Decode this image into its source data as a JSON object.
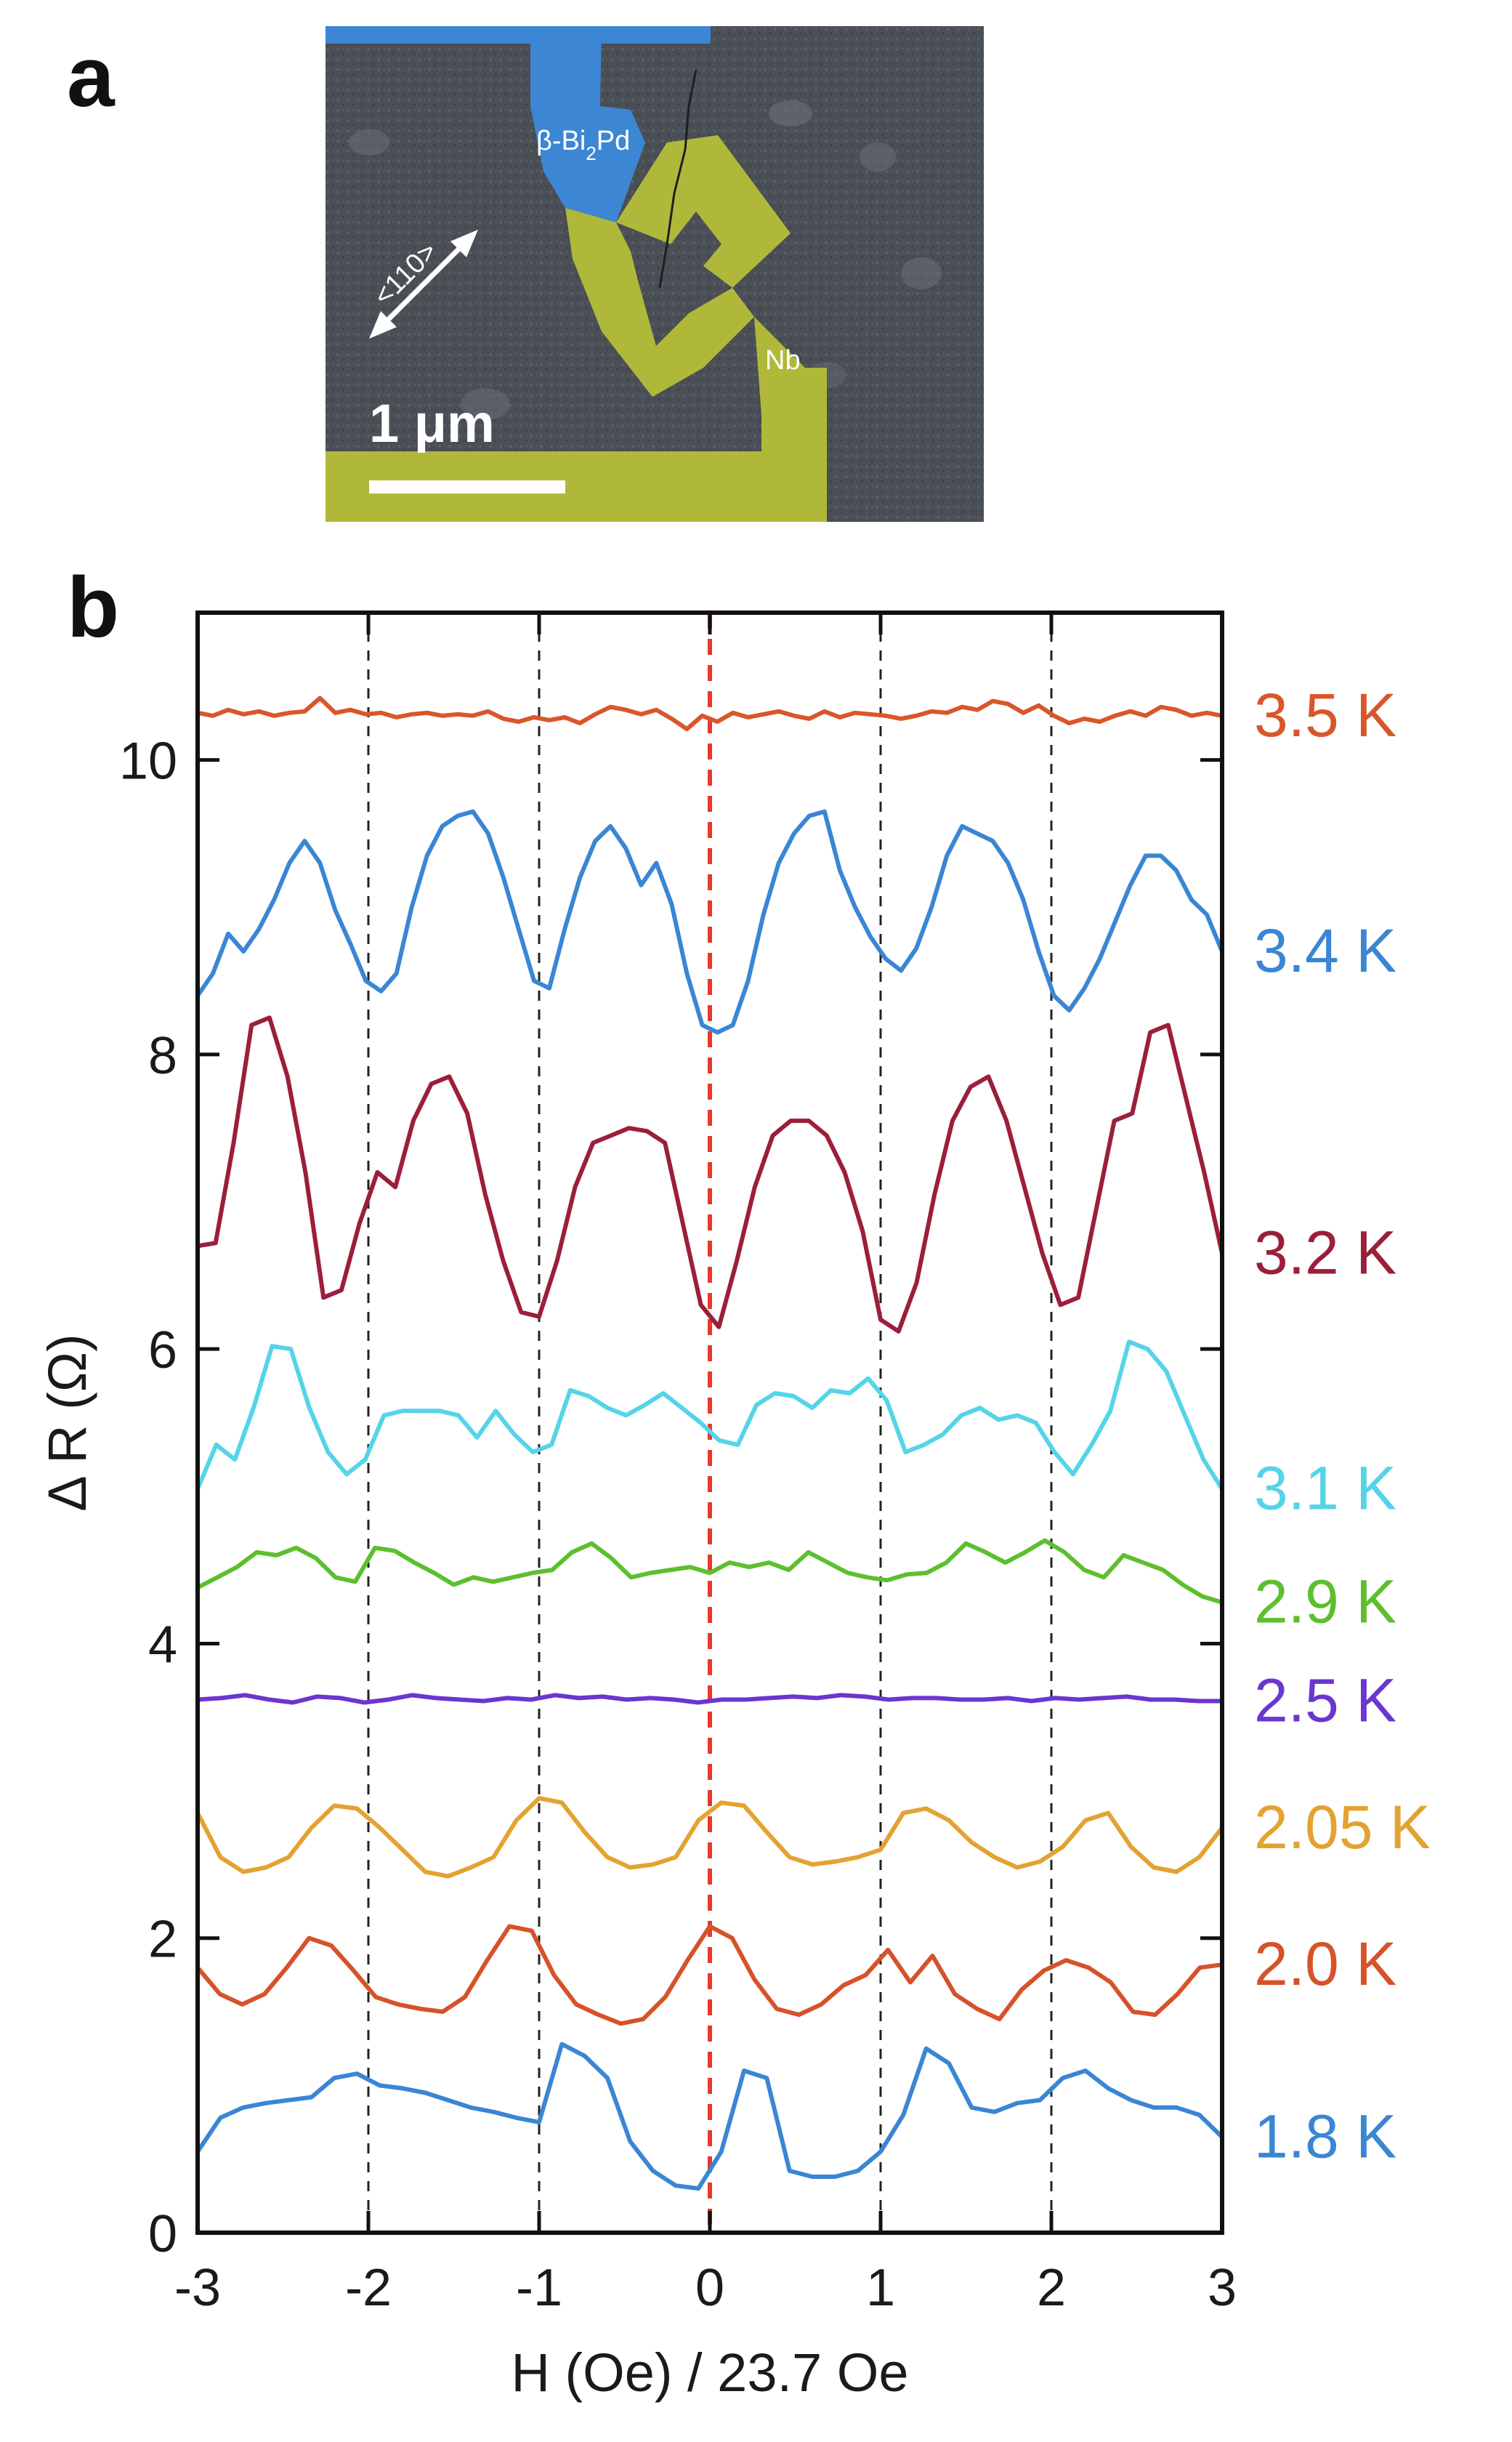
{
  "panel_a": {
    "letter": "a",
    "labels": {
      "material": "β-Bi",
      "material_sub": "2",
      "material_end": "Pd",
      "electrode": "Nb",
      "direction": "<110>",
      "scale": "1 μm"
    },
    "colors": {
      "bipd": "#3d86d3",
      "nb": "#b0b83a",
      "substrate": "#4a4e55"
    }
  },
  "panel_b": {
    "letter": "b"
  },
  "chart_data": {
    "type": "line",
    "xlabel": "H (Oe) / 23.7 Oe",
    "ylabel": "Δ R (Ω)",
    "xlim": [
      -3,
      3
    ],
    "ylim": [
      0,
      11
    ],
    "xticks": [
      -3,
      -2,
      -1,
      0,
      1,
      2,
      3
    ],
    "xtick_labels": [
      "-3",
      "-2",
      "-1",
      "0",
      "1",
      "2",
      "3"
    ],
    "yticks": [
      0,
      2,
      4,
      6,
      8,
      10
    ],
    "ytick_labels": [
      "0",
      "2",
      "4",
      "6",
      "8",
      "10"
    ],
    "dashed_verticals": [
      -2,
      -1,
      1,
      2
    ],
    "center_line": {
      "x": 0,
      "color": "#e8382a"
    },
    "series": [
      {
        "name": "3.5 K",
        "color": "#d9562b",
        "values": [
          10.32,
          10.3,
          10.34,
          10.31,
          10.33,
          10.3,
          10.32,
          10.33,
          10.42,
          10.32,
          10.34,
          10.31,
          10.32,
          10.29,
          10.31,
          10.32,
          10.3,
          10.31,
          10.3,
          10.33,
          10.28,
          10.26,
          10.29,
          10.27,
          10.29,
          10.25,
          10.31,
          10.36,
          10.34,
          10.31,
          10.34,
          10.28,
          10.21,
          10.3,
          10.26,
          10.32,
          10.29,
          10.31,
          10.33,
          10.3,
          10.28,
          10.33,
          10.29,
          10.32,
          10.31,
          10.3,
          10.28,
          10.3,
          10.33,
          10.32,
          10.36,
          10.34,
          10.4,
          10.38,
          10.32,
          10.37,
          10.3,
          10.25,
          10.28,
          10.26,
          10.3,
          10.33,
          10.3,
          10.36,
          10.34,
          10.3,
          10.32,
          10.3
        ]
      },
      {
        "name": "3.4 K",
        "color": "#3a86d4",
        "values": [
          8.4,
          8.55,
          8.82,
          8.7,
          8.85,
          9.05,
          9.3,
          9.45,
          9.3,
          8.98,
          8.75,
          8.5,
          8.43,
          8.55,
          9.0,
          9.35,
          9.55,
          9.62,
          9.65,
          9.5,
          9.2,
          8.85,
          8.5,
          8.45,
          8.85,
          9.2,
          9.45,
          9.55,
          9.4,
          9.15,
          9.3,
          9.02,
          8.55,
          8.2,
          8.15,
          8.2,
          8.5,
          8.95,
          9.3,
          9.5,
          9.62,
          9.65,
          9.25,
          9.0,
          8.8,
          8.65,
          8.57,
          8.72,
          9.0,
          9.35,
          9.55,
          9.5,
          9.45,
          9.3,
          9.05,
          8.7,
          8.4,
          8.3,
          8.45,
          8.65,
          8.9,
          9.15,
          9.35,
          9.35,
          9.25,
          9.05,
          8.95,
          8.7
        ]
      },
      {
        "name": "3.2 K",
        "color": "#9b1f3a",
        "values": [
          6.7,
          6.72,
          7.4,
          8.2,
          8.25,
          7.85,
          7.2,
          6.35,
          6.4,
          6.85,
          7.2,
          7.1,
          7.55,
          7.8,
          7.85,
          7.6,
          7.05,
          6.6,
          6.25,
          6.22,
          6.6,
          7.1,
          7.4,
          7.45,
          7.5,
          7.48,
          7.4,
          6.85,
          6.3,
          6.15,
          6.6,
          7.1,
          7.45,
          7.55,
          7.55,
          7.45,
          7.2,
          6.8,
          6.2,
          6.12,
          6.45,
          7.05,
          7.55,
          7.78,
          7.85,
          7.55,
          7.1,
          6.65,
          6.3,
          6.35,
          6.95,
          7.55,
          7.6,
          8.15,
          8.2,
          7.7,
          7.2,
          6.65
        ]
      },
      {
        "name": "3.1 K",
        "color": "#55d4e8",
        "values": [
          5.05,
          5.35,
          5.25,
          5.6,
          6.02,
          6.0,
          5.6,
          5.3,
          5.15,
          5.25,
          5.55,
          5.58,
          5.58,
          5.58,
          5.55,
          5.4,
          5.58,
          5.42,
          5.3,
          5.35,
          5.72,
          5.68,
          5.6,
          5.55,
          5.62,
          5.7,
          5.6,
          5.5,
          5.38,
          5.35,
          5.62,
          5.7,
          5.68,
          5.6,
          5.72,
          5.7,
          5.8,
          5.65,
          5.3,
          5.35,
          5.42,
          5.55,
          5.6,
          5.52,
          5.55,
          5.5,
          5.3,
          5.15,
          5.35,
          5.58,
          6.05,
          6.0,
          5.85,
          5.55,
          5.25,
          5.05
        ]
      },
      {
        "name": "2.9 K",
        "color": "#5dbf2e",
        "values": [
          4.38,
          4.45,
          4.52,
          4.62,
          4.6,
          4.65,
          4.58,
          4.45,
          4.42,
          4.65,
          4.63,
          4.55,
          4.48,
          4.4,
          4.45,
          4.42,
          4.45,
          4.48,
          4.5,
          4.62,
          4.68,
          4.58,
          4.45,
          4.48,
          4.5,
          4.52,
          4.48,
          4.55,
          4.52,
          4.55,
          4.5,
          4.62,
          4.55,
          4.48,
          4.45,
          4.43,
          4.47,
          4.48,
          4.55,
          4.68,
          4.62,
          4.55,
          4.62,
          4.7,
          4.62,
          4.5,
          4.45,
          4.6,
          4.55,
          4.5,
          4.4,
          4.32,
          4.28
        ]
      },
      {
        "name": "2.5 K",
        "color": "#6a36d0",
        "values": [
          3.62,
          3.63,
          3.65,
          3.62,
          3.6,
          3.64,
          3.63,
          3.6,
          3.62,
          3.65,
          3.63,
          3.62,
          3.61,
          3.63,
          3.62,
          3.65,
          3.63,
          3.64,
          3.62,
          3.63,
          3.62,
          3.6,
          3.62,
          3.62,
          3.63,
          3.64,
          3.63,
          3.65,
          3.64,
          3.62,
          3.63,
          3.63,
          3.62,
          3.62,
          3.63,
          3.61,
          3.63,
          3.62,
          3.63,
          3.64,
          3.62,
          3.62,
          3.61,
          3.61
        ]
      },
      {
        "name": "2.05 K",
        "color": "#e3a331",
        "values": [
          2.85,
          2.55,
          2.45,
          2.48,
          2.55,
          2.75,
          2.9,
          2.88,
          2.75,
          2.6,
          2.45,
          2.42,
          2.48,
          2.55,
          2.8,
          2.95,
          2.92,
          2.72,
          2.55,
          2.48,
          2.5,
          2.55,
          2.8,
          2.92,
          2.9,
          2.72,
          2.55,
          2.5,
          2.52,
          2.55,
          2.6,
          2.85,
          2.88,
          2.8,
          2.65,
          2.55,
          2.48,
          2.52,
          2.62,
          2.8,
          2.85,
          2.62,
          2.48,
          2.45,
          2.55,
          2.75
        ]
      },
      {
        "name": "2.0 K",
        "color": "#d6522a",
        "values": [
          1.8,
          1.62,
          1.55,
          1.62,
          1.8,
          2.0,
          1.95,
          1.78,
          1.6,
          1.55,
          1.52,
          1.5,
          1.6,
          1.85,
          2.08,
          2.05,
          1.75,
          1.55,
          1.48,
          1.42,
          1.45,
          1.6,
          1.85,
          2.08,
          2.0,
          1.72,
          1.52,
          1.48,
          1.55,
          1.68,
          1.75,
          1.92,
          1.7,
          1.88,
          1.62,
          1.52,
          1.45,
          1.65,
          1.78,
          1.85,
          1.8,
          1.7,
          1.5,
          1.48,
          1.62,
          1.8,
          1.82
        ]
      },
      {
        "name": "1.8 K",
        "color": "#3a86d4",
        "values": [
          0.55,
          0.78,
          0.85,
          0.88,
          0.9,
          0.92,
          1.05,
          1.08,
          1.0,
          0.98,
          0.95,
          0.9,
          0.85,
          0.82,
          0.78,
          0.75,
          1.28,
          1.2,
          1.05,
          0.62,
          0.42,
          0.32,
          0.3,
          0.55,
          1.1,
          1.05,
          0.42,
          0.38,
          0.38,
          0.42,
          0.55,
          0.8,
          1.25,
          1.15,
          0.85,
          0.82,
          0.88,
          0.9,
          1.05,
          1.1,
          0.98,
          0.9,
          0.85,
          0.85,
          0.8,
          0.65
        ]
      }
    ]
  }
}
